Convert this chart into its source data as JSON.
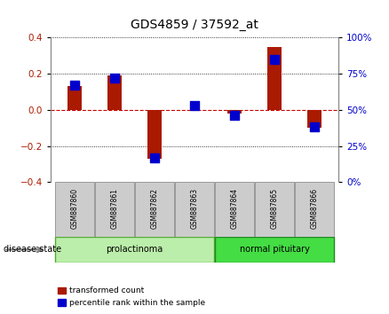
{
  "title": "GDS4859 / 37592_at",
  "samples": [
    "GSM887860",
    "GSM887861",
    "GSM887862",
    "GSM887863",
    "GSM887864",
    "GSM887865",
    "GSM887866"
  ],
  "red_values": [
    0.13,
    0.19,
    -0.27,
    0.0,
    -0.02,
    0.35,
    -0.1
  ],
  "blue_values": [
    67,
    72,
    17,
    53,
    46,
    85,
    38
  ],
  "left_ylim": [
    -0.4,
    0.4
  ],
  "right_ylim": [
    0,
    100
  ],
  "left_yticks": [
    -0.4,
    -0.2,
    0,
    0.2,
    0.4
  ],
  "right_yticks": [
    0,
    25,
    50,
    75,
    100
  ],
  "right_yticklabels": [
    "0%",
    "25%",
    "50%",
    "75%",
    "100%"
  ],
  "red_color": "#aa1a00",
  "blue_color": "#0000cc",
  "red_bar_width": 0.35,
  "blue_marker_size": 50,
  "groups": [
    {
      "label": "prolactinoma",
      "start": 0,
      "end": 3,
      "color": "#bbeeaa",
      "dark_color": "#55aa33"
    },
    {
      "label": "normal pituitary",
      "start": 4,
      "end": 6,
      "color": "#44dd44",
      "dark_color": "#228822"
    }
  ],
  "disease_state_label": "disease state",
  "legend_red": "transformed count",
  "legend_blue": "percentile rank within the sample",
  "sample_box_color": "#cccccc",
  "sample_box_edge": "#999999",
  "bg_color": "#ffffff",
  "grid_dotted_color": "#000000",
  "zero_line_color": "#cc0000"
}
